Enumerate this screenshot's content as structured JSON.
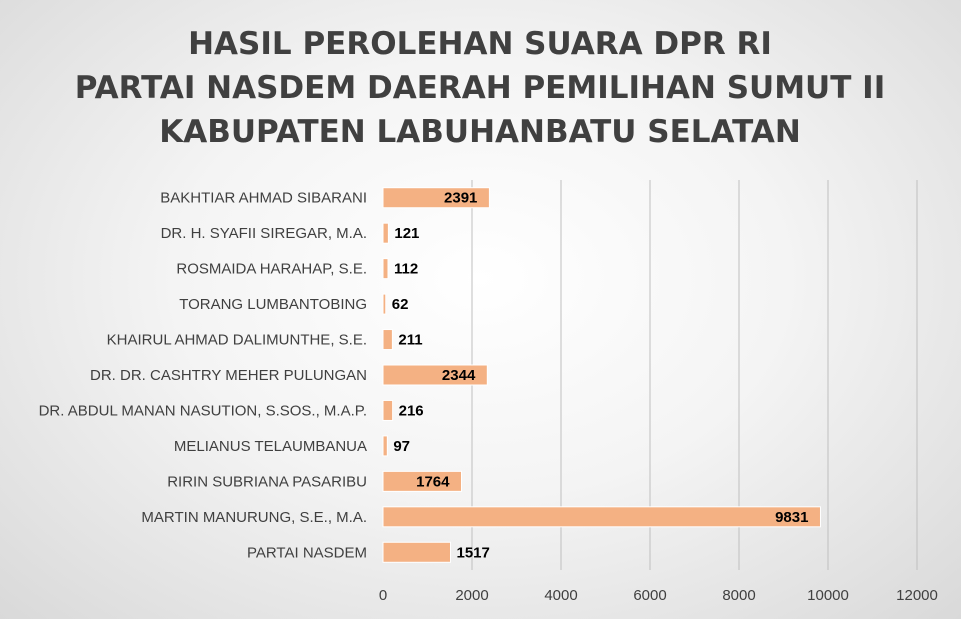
{
  "chart_data": {
    "type": "bar",
    "orientation": "horizontal",
    "title": [
      "HASIL PEROLEHAN SUARA DPR RI",
      "PARTAI NASDEM DAERAH PEMILIHAN SUMUT II",
      "KABUPATEN LABUHANBATU SELATAN"
    ],
    "categories": [
      "BAKHTIAR AHMAD SIBARANI",
      "DR. H. SYAFII SIREGAR, M.A.",
      "ROSMAIDA HARAHAP, S.E.",
      "TORANG LUMBANTOBING",
      "KHAIRUL AHMAD DALIMUNTHE, S.E.",
      "DR. DR. CASHTRY MEHER PULUNGAN",
      "DR. ABDUL MANAN NASUTION, S.SOS., M.A.P.",
      "MELIANUS TELAUMBANUA",
      "RIRIN SUBRIANA PASARIBU",
      "MARTIN MANURUNG, S.E., M.A.",
      "PARTAI NASDEM"
    ],
    "values": [
      2391,
      121,
      112,
      62,
      211,
      2344,
      216,
      97,
      1764,
      9831,
      1517
    ],
    "xlim": [
      0,
      12000
    ],
    "xticks": [
      0,
      2000,
      4000,
      6000,
      8000,
      10000,
      12000
    ],
    "grid": "vertical",
    "legend": "none",
    "colors": {
      "bar": "#f4b183",
      "bar_border": "#ffffff",
      "grid": "#bfbfbf",
      "title": "#404040",
      "text": "#404040",
      "data_label": "#000000"
    }
  }
}
